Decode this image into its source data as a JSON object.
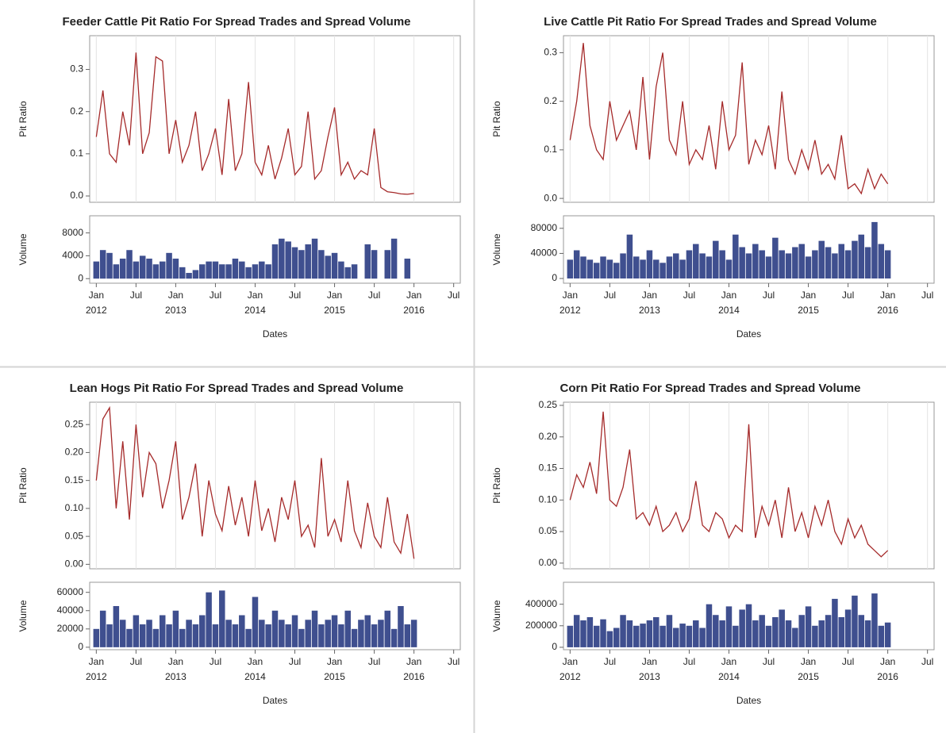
{
  "chart_data": [
    {
      "type": "line",
      "title": "Feeder Cattle Pit Ratio For Spread Trades and Spread Volume",
      "xlabel": "Dates",
      "x": [
        "2012-01",
        "2012-02",
        "2012-03",
        "2012-04",
        "2012-05",
        "2012-06",
        "2012-07",
        "2012-08",
        "2012-09",
        "2012-10",
        "2012-11",
        "2012-12",
        "2013-01",
        "2013-02",
        "2013-03",
        "2013-04",
        "2013-05",
        "2013-06",
        "2013-07",
        "2013-08",
        "2013-09",
        "2013-10",
        "2013-11",
        "2013-12",
        "2014-01",
        "2014-02",
        "2014-03",
        "2014-04",
        "2014-05",
        "2014-06",
        "2014-07",
        "2014-08",
        "2014-09",
        "2014-10",
        "2014-11",
        "2014-12",
        "2015-01",
        "2015-02",
        "2015-03",
        "2015-04",
        "2015-05",
        "2015-06",
        "2015-07",
        "2015-08",
        "2015-09",
        "2015-10",
        "2015-11",
        "2015-12",
        "2016-01"
      ],
      "xlim": [
        "2011-12",
        "2016-08"
      ],
      "xticks": [
        {
          "value": "2012-01",
          "label": "Jan 2012"
        },
        {
          "value": "2012-07",
          "label": "Jul"
        },
        {
          "value": "2013-01",
          "label": "Jan 2013"
        },
        {
          "value": "2013-07",
          "label": "Jul"
        },
        {
          "value": "2014-01",
          "label": "Jan 2014"
        },
        {
          "value": "2014-07",
          "label": "Jul"
        },
        {
          "value": "2015-01",
          "label": "Jan 2015"
        },
        {
          "value": "2015-07",
          "label": "Jul"
        },
        {
          "value": "2016-01",
          "label": "Jan 2016"
        },
        {
          "value": "2016-07",
          "label": "Jul"
        }
      ],
      "grid": true,
      "panels": [
        {
          "type": "line",
          "ylabel": "Pit Ratio",
          "color": "#a52a2a",
          "ylim": [
            -0.015,
            0.38
          ],
          "yticks": [
            {
              "value": 0,
              "label": "0.0"
            },
            {
              "value": 0.1,
              "label": "0.1"
            },
            {
              "value": 0.2,
              "label": "0.2"
            },
            {
              "value": 0.3,
              "label": "0.3"
            }
          ],
          "values": [
            0.14,
            0.25,
            0.1,
            0.08,
            0.2,
            0.12,
            0.34,
            0.1,
            0.15,
            0.33,
            0.32,
            0.1,
            0.18,
            0.08,
            0.12,
            0.2,
            0.06,
            0.1,
            0.16,
            0.05,
            0.23,
            0.06,
            0.1,
            0.27,
            0.08,
            0.05,
            0.12,
            0.04,
            0.09,
            0.16,
            0.05,
            0.07,
            0.2,
            0.04,
            0.06,
            0.14,
            0.21,
            0.05,
            0.08,
            0.04,
            0.06,
            0.05,
            0.16,
            0.02,
            0.01,
            0.008,
            0.005,
            0.004,
            0.006
          ]
        },
        {
          "type": "bar",
          "ylabel": "Volume",
          "color": "#3f4f8f",
          "ylim": [
            -800,
            11000
          ],
          "yticks": [
            0,
            4000,
            8000
          ],
          "values": [
            3000,
            5000,
            4500,
            2500,
            3500,
            5000,
            3000,
            4000,
            3500,
            2500,
            3000,
            4500,
            3500,
            2000,
            1000,
            1500,
            2500,
            3000,
            3000,
            2500,
            2500,
            3500,
            3000,
            2000,
            2500,
            3000,
            2500,
            6000,
            7000,
            6500,
            5500,
            5000,
            6000,
            7000,
            5000,
            4000,
            4500,
            3000,
            2000,
            2500,
            0,
            6000,
            5000,
            0,
            5000,
            7000,
            0,
            3500,
            0
          ]
        }
      ]
    },
    {
      "type": "line",
      "title": "Live Cattle Pit Ratio For Spread Trades and Spread Volume",
      "xlabel": "Dates",
      "x": [
        "2012-01",
        "2012-02",
        "2012-03",
        "2012-04",
        "2012-05",
        "2012-06",
        "2012-07",
        "2012-08",
        "2012-09",
        "2012-10",
        "2012-11",
        "2012-12",
        "2013-01",
        "2013-02",
        "2013-03",
        "2013-04",
        "2013-05",
        "2013-06",
        "2013-07",
        "2013-08",
        "2013-09",
        "2013-10",
        "2013-11",
        "2013-12",
        "2014-01",
        "2014-02",
        "2014-03",
        "2014-04",
        "2014-05",
        "2014-06",
        "2014-07",
        "2014-08",
        "2014-09",
        "2014-10",
        "2014-11",
        "2014-12",
        "2015-01",
        "2015-02",
        "2015-03",
        "2015-04",
        "2015-05",
        "2015-06",
        "2015-07",
        "2015-08",
        "2015-09",
        "2015-10",
        "2015-11",
        "2015-12",
        "2016-01"
      ],
      "xlim": [
        "2011-12",
        "2016-08"
      ],
      "xticks": [
        {
          "value": "2012-01",
          "label": "Jan 2012"
        },
        {
          "value": "2012-07",
          "label": "Jul"
        },
        {
          "value": "2013-01",
          "label": "Jan 2013"
        },
        {
          "value": "2013-07",
          "label": "Jul"
        },
        {
          "value": "2014-01",
          "label": "Jan 2014"
        },
        {
          "value": "2014-07",
          "label": "Jul"
        },
        {
          "value": "2015-01",
          "label": "Jan 2015"
        },
        {
          "value": "2015-07",
          "label": "Jul"
        },
        {
          "value": "2016-01",
          "label": "Jan 2016"
        },
        {
          "value": "2016-07",
          "label": "Jul"
        }
      ],
      "grid": true,
      "panels": [
        {
          "type": "line",
          "ylabel": "Pit Ratio",
          "color": "#a52a2a",
          "ylim": [
            -0.008,
            0.335
          ],
          "yticks": [
            {
              "value": 0,
              "label": "0.0"
            },
            {
              "value": 0.1,
              "label": "0.1"
            },
            {
              "value": 0.2,
              "label": "0.2"
            },
            {
              "value": 0.3,
              "label": "0.3"
            }
          ],
          "values": [
            0.12,
            0.2,
            0.32,
            0.15,
            0.1,
            0.08,
            0.2,
            0.12,
            0.15,
            0.18,
            0.1,
            0.25,
            0.08,
            0.23,
            0.3,
            0.12,
            0.09,
            0.2,
            0.07,
            0.1,
            0.08,
            0.15,
            0.06,
            0.2,
            0.1,
            0.13,
            0.28,
            0.07,
            0.12,
            0.09,
            0.15,
            0.06,
            0.22,
            0.08,
            0.05,
            0.1,
            0.06,
            0.12,
            0.05,
            0.07,
            0.04,
            0.13,
            0.02,
            0.03,
            0.01,
            0.06,
            0.02,
            0.05,
            0.03
          ]
        },
        {
          "type": "bar",
          "ylabel": "Volume",
          "color": "#3f4f8f",
          "ylim": [
            -7500,
            100000
          ],
          "yticks": [
            0,
            40000,
            80000
          ],
          "values": [
            30000,
            45000,
            35000,
            30000,
            25000,
            35000,
            30000,
            25000,
            40000,
            70000,
            35000,
            30000,
            45000,
            30000,
            25000,
            35000,
            40000,
            30000,
            45000,
            55000,
            40000,
            35000,
            60000,
            45000,
            30000,
            70000,
            50000,
            40000,
            55000,
            45000,
            35000,
            65000,
            45000,
            40000,
            50000,
            55000,
            35000,
            45000,
            60000,
            50000,
            40000,
            55000,
            45000,
            60000,
            70000,
            50000,
            90000,
            55000,
            45000
          ]
        }
      ]
    },
    {
      "type": "line",
      "title": "Lean Hogs Pit Ratio For Spread Trades and Spread Volume",
      "xlabel": "Dates",
      "x": [
        "2012-01",
        "2012-02",
        "2012-03",
        "2012-04",
        "2012-05",
        "2012-06",
        "2012-07",
        "2012-08",
        "2012-09",
        "2012-10",
        "2012-11",
        "2012-12",
        "2013-01",
        "2013-02",
        "2013-03",
        "2013-04",
        "2013-05",
        "2013-06",
        "2013-07",
        "2013-08",
        "2013-09",
        "2013-10",
        "2013-11",
        "2013-12",
        "2014-01",
        "2014-02",
        "2014-03",
        "2014-04",
        "2014-05",
        "2014-06",
        "2014-07",
        "2014-08",
        "2014-09",
        "2014-10",
        "2014-11",
        "2014-12",
        "2015-01",
        "2015-02",
        "2015-03",
        "2015-04",
        "2015-05",
        "2015-06",
        "2015-07",
        "2015-08",
        "2015-09",
        "2015-10",
        "2015-11",
        "2015-12",
        "2016-01"
      ],
      "xlim": [
        "2011-12",
        "2016-08"
      ],
      "xticks": [
        {
          "value": "2012-01",
          "label": "Jan 2012"
        },
        {
          "value": "2012-07",
          "label": "Jul"
        },
        {
          "value": "2013-01",
          "label": "Jan 2013"
        },
        {
          "value": "2013-07",
          "label": "Jul"
        },
        {
          "value": "2014-01",
          "label": "Jan 2014"
        },
        {
          "value": "2014-07",
          "label": "Jul"
        },
        {
          "value": "2015-01",
          "label": "Jan 2015"
        },
        {
          "value": "2015-07",
          "label": "Jul"
        },
        {
          "value": "2016-01",
          "label": "Jan 2016"
        },
        {
          "value": "2016-07",
          "label": "Jul"
        }
      ],
      "grid": true,
      "panels": [
        {
          "type": "line",
          "ylabel": "Pit Ratio",
          "color": "#a52a2a",
          "ylim": [
            -0.008,
            0.29
          ],
          "yticks": [
            {
              "value": 0,
              "label": "0.00"
            },
            0.05,
            {
              "value": 0.1,
              "label": "0.10"
            },
            0.15,
            {
              "value": 0.2,
              "label": "0.20"
            },
            0.25
          ],
          "values": [
            0.15,
            0.26,
            0.28,
            0.1,
            0.22,
            0.08,
            0.25,
            0.12,
            0.2,
            0.18,
            0.1,
            0.15,
            0.22,
            0.08,
            0.12,
            0.18,
            0.05,
            0.15,
            0.09,
            0.06,
            0.14,
            0.07,
            0.12,
            0.05,
            0.15,
            0.06,
            0.1,
            0.04,
            0.12,
            0.08,
            0.15,
            0.05,
            0.07,
            0.03,
            0.19,
            0.05,
            0.08,
            0.04,
            0.15,
            0.06,
            0.03,
            0.11,
            0.05,
            0.03,
            0.12,
            0.04,
            0.02,
            0.09,
            0.01
          ]
        },
        {
          "type": "bar",
          "ylabel": "Volume",
          "color": "#3f4f8f",
          "ylim": [
            -2700,
            71000
          ],
          "yticks": [
            0,
            20000,
            40000,
            60000
          ],
          "values": [
            20000,
            40000,
            25000,
            45000,
            30000,
            20000,
            35000,
            25000,
            30000,
            20000,
            35000,
            25000,
            40000,
            20000,
            30000,
            25000,
            35000,
            60000,
            25000,
            62000,
            30000,
            25000,
            35000,
            20000,
            55000,
            30000,
            25000,
            40000,
            30000,
            25000,
            35000,
            20000,
            30000,
            40000,
            25000,
            30000,
            35000,
            25000,
            40000,
            20000,
            30000,
            35000,
            25000,
            30000,
            40000,
            20000,
            45000,
            25000,
            30000
          ]
        }
      ]
    },
    {
      "type": "line",
      "title": "Corn Pit Ratio For Spread Trades and Spread Volume",
      "xlabel": "Dates",
      "x": [
        "2012-01",
        "2012-02",
        "2012-03",
        "2012-04",
        "2012-05",
        "2012-06",
        "2012-07",
        "2012-08",
        "2012-09",
        "2012-10",
        "2012-11",
        "2012-12",
        "2013-01",
        "2013-02",
        "2013-03",
        "2013-04",
        "2013-05",
        "2013-06",
        "2013-07",
        "2013-08",
        "2013-09",
        "2013-10",
        "2013-11",
        "2013-12",
        "2014-01",
        "2014-02",
        "2014-03",
        "2014-04",
        "2014-05",
        "2014-06",
        "2014-07",
        "2014-08",
        "2014-09",
        "2014-10",
        "2014-11",
        "2014-12",
        "2015-01",
        "2015-02",
        "2015-03",
        "2015-04",
        "2015-05",
        "2015-06",
        "2015-07",
        "2015-08",
        "2015-09",
        "2015-10",
        "2015-11",
        "2015-12",
        "2016-01"
      ],
      "xlim": [
        "2011-12",
        "2016-08"
      ],
      "xticks": [
        {
          "value": "2012-01",
          "label": "Jan 2012"
        },
        {
          "value": "2012-07",
          "label": "Jul"
        },
        {
          "value": "2013-01",
          "label": "Jan 2013"
        },
        {
          "value": "2013-07",
          "label": "Jul"
        },
        {
          "value": "2014-01",
          "label": "Jan 2014"
        },
        {
          "value": "2014-07",
          "label": "Jul"
        },
        {
          "value": "2015-01",
          "label": "Jan 2015"
        },
        {
          "value": "2015-07",
          "label": "Jul"
        },
        {
          "value": "2016-01",
          "label": "Jan 2016"
        },
        {
          "value": "2016-07",
          "label": "Jul"
        }
      ],
      "grid": true,
      "panels": [
        {
          "type": "line",
          "ylabel": "Pit Ratio",
          "color": "#a52a2a",
          "ylim": [
            -0.009,
            0.255
          ],
          "yticks": [
            {
              "value": 0,
              "label": "0.00"
            },
            0.05,
            {
              "value": 0.1,
              "label": "0.10"
            },
            0.15,
            {
              "value": 0.2,
              "label": "0.20"
            },
            0.25
          ],
          "values": [
            0.1,
            0.14,
            0.12,
            0.16,
            0.11,
            0.24,
            0.1,
            0.09,
            0.12,
            0.18,
            0.07,
            0.08,
            0.06,
            0.09,
            0.05,
            0.06,
            0.08,
            0.05,
            0.07,
            0.13,
            0.06,
            0.05,
            0.08,
            0.07,
            0.04,
            0.06,
            0.05,
            0.22,
            0.04,
            0.09,
            0.06,
            0.1,
            0.04,
            0.12,
            0.05,
            0.08,
            0.04,
            0.09,
            0.06,
            0.1,
            0.05,
            0.03,
            0.07,
            0.04,
            0.06,
            0.03,
            0.02,
            0.01,
            0.02
          ]
        },
        {
          "type": "bar",
          "ylabel": "Volume",
          "color": "#3f4f8f",
          "ylim": [
            -22600,
            604000
          ],
          "yticks": [
            0,
            200000,
            400000
          ],
          "values": [
            200000,
            300000,
            250000,
            280000,
            200000,
            260000,
            150000,
            180000,
            300000,
            250000,
            200000,
            220000,
            250000,
            280000,
            200000,
            300000,
            180000,
            220000,
            200000,
            250000,
            180000,
            400000,
            300000,
            250000,
            380000,
            200000,
            350000,
            400000,
            250000,
            300000,
            200000,
            280000,
            350000,
            250000,
            180000,
            300000,
            380000,
            200000,
            250000,
            300000,
            450000,
            280000,
            350000,
            480000,
            300000,
            250000,
            500000,
            200000,
            230000
          ]
        }
      ]
    }
  ]
}
